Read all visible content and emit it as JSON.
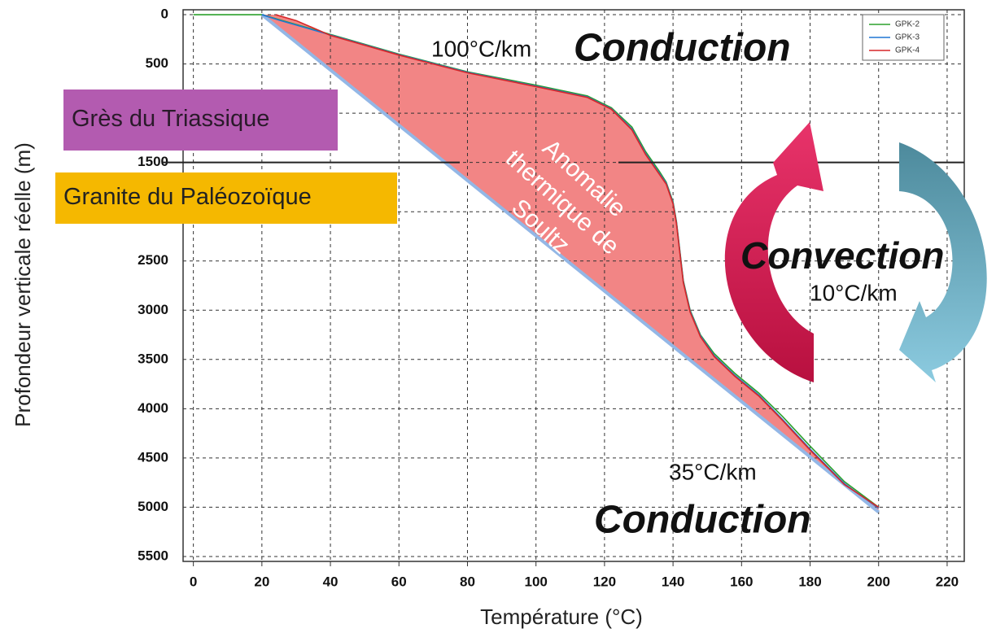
{
  "chart_data": {
    "type": "line",
    "x_label": "Température (°C)",
    "y_label": "Profondeur verticale réelle (m)",
    "xlim": [
      -3,
      225
    ],
    "ylim": [
      -50,
      5550
    ],
    "y_inverted": true,
    "xticks": [
      0,
      20,
      40,
      60,
      80,
      100,
      120,
      140,
      160,
      180,
      200,
      220
    ],
    "yticks": [
      0,
      500,
      1000,
      1500,
      2000,
      2500,
      3000,
      3500,
      4000,
      4500,
      5000,
      5500
    ],
    "grid": true,
    "legend": "upper right",
    "series": [
      {
        "name": "GPK-2",
        "color": "#2ca02c",
        "x": [
          0,
          20,
          25,
          40,
          60,
          80,
          100,
          115,
          122,
          128,
          132,
          136,
          138,
          140,
          141,
          142,
          143,
          145,
          148,
          152,
          158,
          165,
          172,
          180,
          190,
          200
        ],
        "values": [
          0,
          0,
          50,
          200,
          400,
          580,
          715,
          825,
          945,
          1140,
          1390,
          1590,
          1700,
          1900,
          2100,
          2400,
          2700,
          3000,
          3250,
          3440,
          3640,
          3840,
          4080,
          4380,
          4740,
          5000
        ]
      },
      {
        "name": "GPK-3",
        "color": "#1f77d4",
        "x": [
          20,
          25,
          40,
          60,
          80,
          100,
          115,
          122,
          128,
          132,
          136,
          138,
          140,
          141,
          142,
          143,
          145,
          148,
          152,
          158,
          165,
          172,
          180,
          190,
          200
        ],
        "values": [
          0,
          55,
          205,
          405,
          585,
          725,
          835,
          955,
          1160,
          1410,
          1610,
          1710,
          1910,
          2110,
          2410,
          2710,
          3010,
          3260,
          3460,
          3660,
          3860,
          4110,
          4410,
          4760,
          5010
        ]
      },
      {
        "name": "GPK-4",
        "color": "#d62728",
        "x": [
          24,
          30,
          40,
          60,
          80,
          100,
          115,
          122,
          128,
          132,
          136,
          138,
          140,
          141,
          142,
          143,
          145,
          148,
          152,
          158,
          165,
          172,
          180,
          190,
          200
        ],
        "values": [
          0,
          60,
          210,
          410,
          590,
          730,
          840,
          960,
          1170,
          1420,
          1620,
          1720,
          1920,
          2120,
          2420,
          2720,
          3020,
          3270,
          3470,
          3670,
          3870,
          4120,
          4420,
          4770,
          5000
        ]
      }
    ],
    "reference_line": {
      "color": "#93b7e6",
      "x": [
        20,
        200
      ],
      "values": [
        0,
        5050
      ]
    },
    "boundary_depth": 1500,
    "anomaly_color": "#f07070",
    "annotations": [
      "100°C/km",
      "Conduction",
      "Convection",
      "10°C/km",
      "35°C/km",
      "Conduction"
    ],
    "anomaly_label": [
      "Anomalie",
      "thermique de",
      "Soultz"
    ],
    "layers": [
      "Grès du Triassique",
      "Granite du Paléozoïque"
    ]
  }
}
